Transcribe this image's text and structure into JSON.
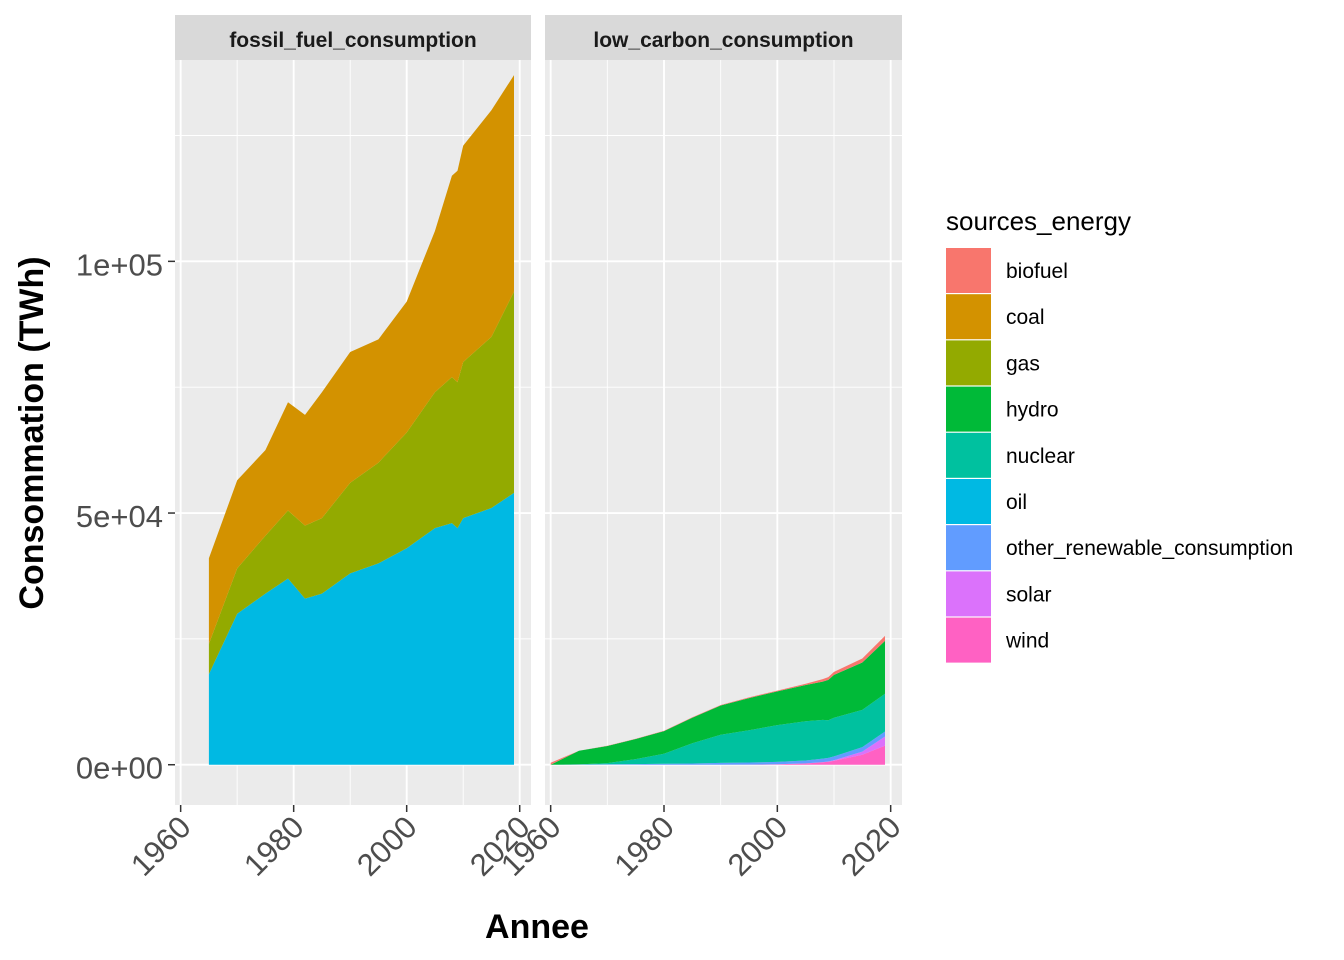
{
  "chart_data": {
    "type": "area",
    "stacked": true,
    "facets": [
      "fossil_fuel_consumption",
      "low_carbon_consumption"
    ],
    "xlabel": "Annee",
    "ylabel": "Consommation (TWh)",
    "xlim": [
      1959,
      2022
    ],
    "ylim": [
      -8000,
      140000
    ],
    "x_ticks": [
      "1960",
      "1980",
      "2000",
      "2020"
    ],
    "x_tick_values": [
      1960,
      1980,
      2000,
      2020
    ],
    "y_ticks": [
      "0e+00",
      "5e+04",
      "1e+05"
    ],
    "y_tick_values": [
      0,
      50000,
      100000
    ],
    "grid": true,
    "legend": {
      "title": "sources_energy",
      "position": "right",
      "entries": [
        {
          "name": "biofuel",
          "color": "#F8766D"
        },
        {
          "name": "coal",
          "color": "#D39200"
        },
        {
          "name": "gas",
          "color": "#93AA00"
        },
        {
          "name": "hydro",
          "color": "#00BA38"
        },
        {
          "name": "nuclear",
          "color": "#00C19F"
        },
        {
          "name": "oil",
          "color": "#00B9E3"
        },
        {
          "name": "other_renewable_consumption",
          "color": "#619CFF"
        },
        {
          "name": "solar",
          "color": "#DB72FB"
        },
        {
          "name": "wind",
          "color": "#FF61C3"
        }
      ]
    },
    "panels": [
      {
        "facet": "fossil_fuel_consumption",
        "x": [
          1965,
          1970,
          1975,
          1979,
          1982,
          1985,
          1990,
          1995,
          2000,
          2005,
          2008,
          2009,
          2010,
          2015,
          2019
        ],
        "series": [
          {
            "name": "oil",
            "values": [
              18000,
              30000,
              34000,
              37000,
              33000,
              34000,
              38000,
              40000,
              43000,
              47000,
              48000,
              47000,
              49000,
              51000,
              54000
            ]
          },
          {
            "name": "gas",
            "values": [
              6000,
              9000,
              11500,
              13500,
              14500,
              15000,
              18000,
              20000,
              23000,
              27000,
              29000,
              29000,
              31000,
              34000,
              40000
            ]
          },
          {
            "name": "coal",
            "values": [
              17000,
              17500,
              17000,
              21500,
              22000,
              25000,
              26000,
              24500,
              26000,
              32000,
              40000,
              42000,
              43000,
              45000,
              43000
            ]
          }
        ]
      },
      {
        "facet": "low_carbon_consumption",
        "x": [
          1960,
          1965,
          1970,
          1975,
          1980,
          1985,
          1990,
          1995,
          2000,
          2005,
          2008,
          2009,
          2010,
          2015,
          2019
        ],
        "series": [
          {
            "name": "wind",
            "values": [
              0,
              0,
              0,
              0,
              0,
              0,
              10,
              20,
              80,
              250,
              500,
              600,
              800,
              2000,
              3800
            ]
          },
          {
            "name": "solar",
            "values": [
              0,
              0,
              0,
              0,
              0,
              0,
              0,
              0,
              5,
              10,
              30,
              50,
              100,
              600,
              1800
            ]
          },
          {
            "name": "other_renewable_consumption",
            "values": [
              0,
              50,
              80,
              120,
              180,
              250,
              350,
              420,
              480,
              580,
              680,
              700,
              750,
              900,
              1000
            ]
          },
          {
            "name": "nuclear",
            "values": [
              0,
              20,
              250,
              1000,
              2000,
              4000,
              5600,
              6400,
              7300,
              7800,
              7700,
              7500,
              7700,
              7400,
              7500
            ]
          },
          {
            "name": "oil",
            "values": [
              0,
              0,
              0,
              0,
              0,
              0,
              0,
              0,
              0,
              0,
              0,
              0,
              0,
              0,
              0
            ]
          },
          {
            "name": "hydro",
            "values": [
              0,
              2700,
              3400,
              4000,
              4500,
              5100,
              5800,
              6400,
              6700,
              7200,
              7600,
              8000,
              8500,
              9400,
              10500
            ]
          },
          {
            "name": "gas",
            "values": [
              0,
              0,
              0,
              0,
              0,
              0,
              0,
              0,
              0,
              0,
              0,
              0,
              0,
              0,
              0
            ]
          },
          {
            "name": "coal",
            "values": [
              0,
              0,
              0,
              0,
              0,
              0,
              0,
              0,
              0,
              0,
              0,
              0,
              0,
              0,
              0
            ]
          },
          {
            "name": "biofuel",
            "values": [
              400,
              20,
              30,
              40,
              60,
              80,
              100,
              130,
              170,
              250,
              500,
              550,
              600,
              800,
              1000
            ]
          }
        ]
      }
    ]
  }
}
